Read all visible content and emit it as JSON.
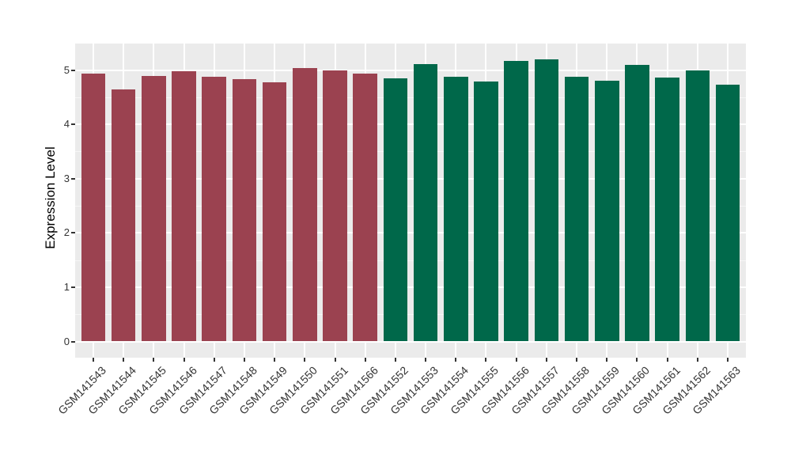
{
  "figure": {
    "colors": {
      "panel_bg": "#EBEBEB",
      "grid_major": "#FFFFFF",
      "grid_minor": "#F6F6F6",
      "tick": "#333333",
      "axis_text": "#333333",
      "group_red": "#9B4250",
      "group_green": "#00684A"
    }
  },
  "chart_data": {
    "type": "bar",
    "title": "",
    "xlabel": "",
    "ylabel": "Expression Level",
    "ylim": [
      0,
      5.5
    ],
    "yticks": [
      0,
      1,
      2,
      3,
      4,
      5
    ],
    "yminor": [
      0.5,
      1.5,
      2.5,
      3.5,
      4.5
    ],
    "grid": "on",
    "legend": "none",
    "groups": [
      {
        "name": "group_red",
        "color": "#9B4250"
      },
      {
        "name": "group_green",
        "color": "#00684A"
      }
    ],
    "bars": [
      {
        "label": "GSM141543",
        "value": 4.94,
        "group": "group_red"
      },
      {
        "label": "GSM141544",
        "value": 4.64,
        "group": "group_red"
      },
      {
        "label": "GSM141545",
        "value": 4.89,
        "group": "group_red"
      },
      {
        "label": "GSM141546",
        "value": 4.98,
        "group": "group_red"
      },
      {
        "label": "GSM141547",
        "value": 4.88,
        "group": "group_red"
      },
      {
        "label": "GSM141548",
        "value": 4.83,
        "group": "group_red"
      },
      {
        "label": "GSM141549",
        "value": 4.77,
        "group": "group_red"
      },
      {
        "label": "GSM141550",
        "value": 5.04,
        "group": "group_red"
      },
      {
        "label": "GSM141551",
        "value": 4.99,
        "group": "group_red"
      },
      {
        "label": "GSM141566",
        "value": 4.93,
        "group": "group_red"
      },
      {
        "label": "GSM141552",
        "value": 4.84,
        "group": "group_green"
      },
      {
        "label": "GSM141553",
        "value": 5.11,
        "group": "group_green"
      },
      {
        "label": "GSM141554",
        "value": 4.88,
        "group": "group_green"
      },
      {
        "label": "GSM141555",
        "value": 4.79,
        "group": "group_green"
      },
      {
        "label": "GSM141556",
        "value": 5.17,
        "group": "group_green"
      },
      {
        "label": "GSM141557",
        "value": 5.2,
        "group": "group_green"
      },
      {
        "label": "GSM141558",
        "value": 4.88,
        "group": "group_green"
      },
      {
        "label": "GSM141559",
        "value": 4.8,
        "group": "group_green"
      },
      {
        "label": "GSM141560",
        "value": 5.1,
        "group": "group_green"
      },
      {
        "label": "GSM141561",
        "value": 4.86,
        "group": "group_green"
      },
      {
        "label": "GSM141562",
        "value": 4.99,
        "group": "group_green"
      },
      {
        "label": "GSM141563",
        "value": 4.73,
        "group": "group_green"
      }
    ]
  }
}
